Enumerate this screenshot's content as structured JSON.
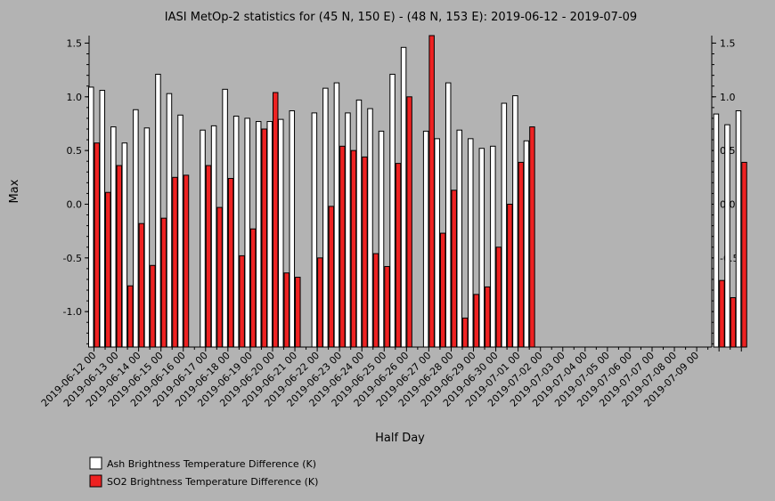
{
  "chart_data": {
    "type": "bar",
    "title": "IASI MetOp-2 statistics for (45 N, 150 E) - (48 N, 153 E): 2019-06-12 - 2019-07-09",
    "xlabel": "Half Day",
    "ylabel": "Max",
    "ylim": [
      -1.33,
      1.57
    ],
    "yticks": [
      1.5,
      1.0,
      0.5,
      0.0,
      -0.5,
      -1.0
    ],
    "ytick_labels": [
      "1.5",
      "1.0",
      "0.5",
      "0.0",
      "-0.5",
      "-1.0"
    ],
    "xtick_labels": [
      "2019-06-12 00",
      "2019-06-13 00",
      "2019-06-14 00",
      "2019-06-15 00",
      "2019-06-16 00",
      "2019-06-17 00",
      "2019-06-18 00",
      "2019-06-19 00",
      "2019-06-20 00",
      "2019-06-21 00",
      "2019-06-22 00",
      "2019-06-23 00",
      "2019-06-24 00",
      "2019-06-25 00",
      "2019-06-26 00",
      "2019-06-27 00",
      "2019-06-28 00",
      "2019-06-29 00",
      "2019-06-30 00",
      "2019-07-01 00",
      "2019-07-02 00",
      "2019-07-03 00",
      "2019-07-04 00",
      "2019-07-05 00",
      "2019-07-06 00",
      "2019-07-07 00",
      "2019-07-08 00",
      "2019-07-09 00"
    ],
    "legend_position": "bottom-left",
    "series": [
      {
        "name": "Ash Brightness Temperature Difference (K)",
        "color": "#ffffff",
        "values": [
          1.09,
          1.06,
          0.72,
          0.57,
          0.88,
          0.71,
          1.21,
          1.03,
          0.83,
          null,
          0.69,
          0.73,
          1.07,
          0.82,
          0.8,
          0.77,
          0.77,
          0.79,
          0.87,
          null,
          0.85,
          1.08,
          1.13,
          0.85,
          0.97,
          0.89,
          0.68,
          1.21,
          1.46,
          null,
          0.68,
          0.61,
          1.13,
          0.69,
          0.61,
          0.52,
          0.54,
          0.94,
          1.01,
          0.59,
          null,
          null,
          null,
          null,
          null,
          null,
          null,
          null,
          null,
          null,
          null,
          null,
          null,
          null,
          null,
          null,
          0.84,
          0.74,
          0.87
        ]
      },
      {
        "name": "SO2 Brightness Temperature Difference (K)",
        "color": "#ee2222",
        "values": [
          0.57,
          0.11,
          0.36,
          -0.76,
          -0.18,
          -0.57,
          -0.13,
          0.25,
          0.27,
          null,
          0.36,
          -0.03,
          0.24,
          -0.48,
          -0.23,
          0.7,
          1.04,
          -0.64,
          -0.68,
          null,
          -0.5,
          -0.02,
          0.54,
          0.5,
          0.44,
          -0.46,
          -0.58,
          0.38,
          1.0,
          null,
          1.57,
          -0.27,
          0.13,
          -1.06,
          -0.84,
          -0.77,
          -0.4,
          0.0,
          0.39,
          0.72,
          null,
          null,
          null,
          null,
          null,
          null,
          null,
          null,
          null,
          null,
          null,
          null,
          null,
          null,
          null,
          null,
          -0.71,
          -0.87,
          0.39
        ]
      }
    ]
  }
}
